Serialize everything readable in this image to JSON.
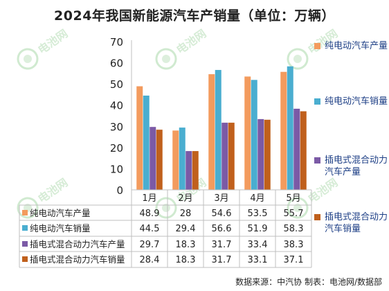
{
  "title": "2024年我国新能源汽车产销量（单位：万辆）",
  "source": "数据来源：中汽协  制表：电池网/数据部",
  "watermark": "电池网",
  "chart_data": {
    "type": "bar",
    "title": "2024年我国新能源汽车产销量（单位：万辆）",
    "categories": [
      "1月",
      "2月",
      "3月",
      "4月",
      "5月"
    ],
    "series": [
      {
        "name": "纯电动汽车产量",
        "color": "#f39b5e",
        "values": [
          48.9,
          28,
          54.6,
          53.5,
          55.7
        ]
      },
      {
        "name": "纯电动汽车销量",
        "color": "#4aaed0",
        "values": [
          44.5,
          29.4,
          56.6,
          51.9,
          58.3
        ]
      },
      {
        "name": "插电式混合动力汽车产量",
        "color": "#7b5aa6",
        "values": [
          29.7,
          18.3,
          31.7,
          33.4,
          38.3
        ]
      },
      {
        "name": "插电式混合动力汽车销量",
        "color": "#c0601c",
        "values": [
          28.4,
          18.3,
          31.7,
          33.1,
          37.1
        ]
      }
    ],
    "ylim": [
      0,
      70
    ],
    "yticks": [
      0,
      10,
      20,
      30,
      40,
      50,
      60,
      70
    ],
    "grid": false,
    "legend_position": "right",
    "data_table": true
  }
}
